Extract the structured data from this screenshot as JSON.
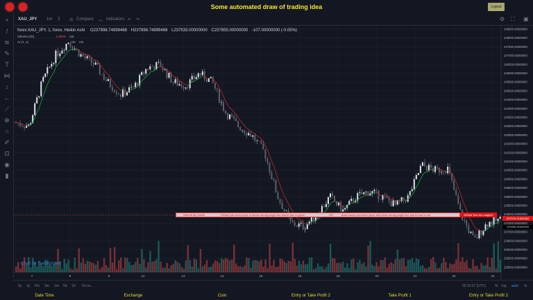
{
  "header": {
    "title": "Some automated draw of trading idea",
    "logout": "Logout"
  },
  "toolbar": {
    "symbol": "XAU_JPY",
    "interval": "1m",
    "compare": "Compare",
    "indicators": "Indicators"
  },
  "legend": {
    "series": "forex:XAU_JPY, 1, forex, Heikin Ashi",
    "open": "O237898.74899468",
    "high": "H237898.74899468",
    "low": "L237533.00000000",
    "close": "C237655.00000000",
    "change": "-107.00000000 (-0.05%)",
    "volume": "Volume (20)",
    "volume_val": "1.092K",
    "volume_na": "n/a",
    "ai": "AI (1, 1)",
    "ai_na1": "n/a",
    "ai_na2": "n/a"
  },
  "banner": {
    "t1": "Wait till flip 23825",
    "t2": "DRAW just when price is above strong angle line and AI line is green",
    "t3": "OR",
    "t4": "draw shorts just when price still below strong angle line and AI line is red",
    "t5": "DRAW See the magic!!!"
  },
  "price_axis": {
    "labels": [
      "248500.00000000",
      "248000.00000000",
      "247500.00000000",
      "247000.00000000",
      "246500.00000000",
      "246000.00000000",
      "245500.00000000",
      "245000.00000000",
      "244500.00000000",
      "244000.00000000",
      "243500.00000000",
      "243000.00000000",
      "242500.00000000",
      "242000.00000000",
      "241500.00000000",
      "241000.00000000",
      "240500.00000000",
      "240000.00000000",
      "239500.00000000",
      "239000.00000000",
      "238500.00000000",
      "238000.00000000",
      "237500.00000000",
      "237000.00000000",
      "236500.00000000",
      "236000.00000000",
      "235500.00000000",
      "235000.00000000"
    ],
    "current": "237976.31505484",
    "last": "237655.00000000"
  },
  "time_axis": [
    "7",
    "8",
    "9",
    "11",
    "13",
    "14",
    "15",
    "16",
    "18",
    "20",
    "21",
    "22",
    "23"
  ],
  "bottom": {
    "ranges": [
      "5y",
      "1y",
      "6m",
      "3m",
      "1m",
      "5d",
      "1d",
      "Go to..."
    ],
    "clock": "02:11:07 (UTC)",
    "pct": "%",
    "log": "log",
    "auto": "auto"
  },
  "watermark": "Chart by TradingView",
  "footer": [
    "Date Time",
    "Exchange",
    "Coin",
    "Entry or Take Profit 2",
    "Take Profit 1",
    "Entry or Take Profit 2"
  ],
  "colors": {
    "up": "#26a69a",
    "down": "#ef5350",
    "title": "#f5e62a",
    "ai_green": "#1fa33a",
    "ai_red": "#c62828"
  },
  "chart_data": {
    "type": "candlestick",
    "style": "Heikin Ashi",
    "ylim": [
      235000,
      248700
    ],
    "close_path": [
      243200,
      243000,
      245500,
      247000,
      247800,
      247000,
      246500,
      245500,
      244800,
      245200,
      246300,
      246500,
      245500,
      245300,
      246000,
      245500,
      243800,
      243000,
      242500,
      241500,
      239000,
      237500,
      237300,
      238000,
      239000,
      238200,
      239000,
      239300,
      239000,
      238500,
      239000,
      240800,
      240500,
      240600,
      238000,
      236500,
      237500,
      237700
    ]
  }
}
